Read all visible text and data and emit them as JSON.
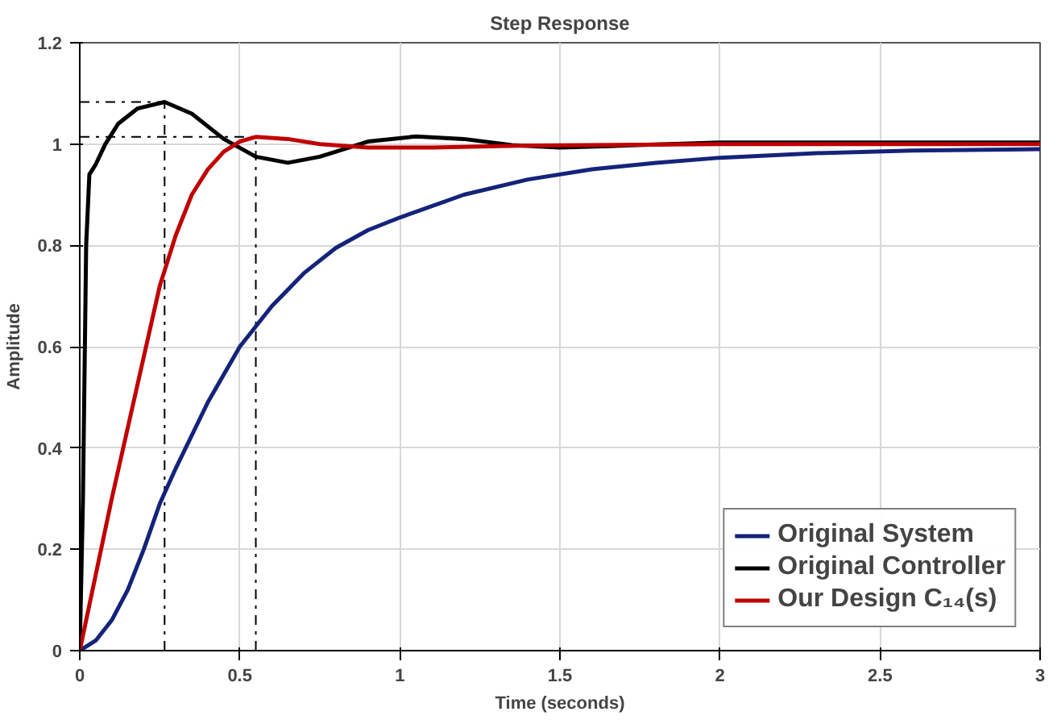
{
  "chart_data": {
    "type": "line",
    "title": "Step Response",
    "xlabel": "Time (seconds)",
    "ylabel": "Amplitude",
    "xlim": [
      0,
      3
    ],
    "ylim": [
      0,
      1.2
    ],
    "xticks": [
      0,
      0.5,
      1,
      1.5,
      2,
      2.5,
      3
    ],
    "yticks": [
      0,
      0.2,
      0.4,
      0.6,
      0.8,
      1,
      1.2
    ],
    "grid": true,
    "legend": "bottom right",
    "marker": "none",
    "line_style": "solid",
    "series": [
      {
        "name": "Original System",
        "color": "#14237a",
        "x": [
          0,
          0.05,
          0.1,
          0.15,
          0.2,
          0.25,
          0.3,
          0.4,
          0.5,
          0.6,
          0.7,
          0.8,
          0.9,
          1.0,
          1.2,
          1.4,
          1.6,
          1.8,
          2.0,
          2.3,
          2.6,
          3.0
        ],
        "values": [
          0,
          0.02,
          0.06,
          0.12,
          0.2,
          0.29,
          0.36,
          0.49,
          0.6,
          0.68,
          0.745,
          0.795,
          0.83,
          0.855,
          0.9,
          0.93,
          0.95,
          0.963,
          0.973,
          0.982,
          0.987,
          0.99
        ]
      },
      {
        "name": "Original Controller",
        "color": "#000000",
        "x": [
          0,
          0.01,
          0.02,
          0.03,
          0.05,
          0.08,
          0.12,
          0.18,
          0.265,
          0.35,
          0.45,
          0.55,
          0.65,
          0.75,
          0.9,
          1.05,
          1.2,
          1.35,
          1.5,
          1.7,
          2.0,
          2.5,
          3.0
        ],
        "values": [
          0,
          0.3,
          0.8,
          0.94,
          0.96,
          1.0,
          1.04,
          1.07,
          1.083,
          1.06,
          1.01,
          0.975,
          0.963,
          0.975,
          1.005,
          1.015,
          1.01,
          0.998,
          0.993,
          0.997,
          1.003,
          1.003,
          1.003
        ]
      },
      {
        "name": "Our Design C₁₄(s)",
        "color": "#c00000",
        "x": [
          0,
          0.05,
          0.1,
          0.15,
          0.2,
          0.25,
          0.3,
          0.35,
          0.4,
          0.45,
          0.5,
          0.55,
          0.65,
          0.75,
          0.9,
          1.1,
          1.4,
          2.0,
          3.0
        ],
        "values": [
          0,
          0.15,
          0.3,
          0.44,
          0.58,
          0.72,
          0.82,
          0.9,
          0.95,
          0.985,
          1.005,
          1.014,
          1.01,
          1.0,
          0.993,
          0.993,
          0.997,
          1.0,
          1.0
        ]
      }
    ],
    "ref_lines": [
      {
        "axis": "x",
        "value": 0.265,
        "line_style": "dashdot",
        "color": "#000000"
      },
      {
        "axis": "x",
        "value": 0.55,
        "line_style": "dashdot",
        "color": "#000000"
      },
      {
        "axis": "y",
        "value": 1.083,
        "line_style": "dashdot",
        "color": "#000000"
      },
      {
        "axis": "y",
        "value": 1.014,
        "line_style": "dashdot",
        "color": "#000000"
      }
    ]
  }
}
